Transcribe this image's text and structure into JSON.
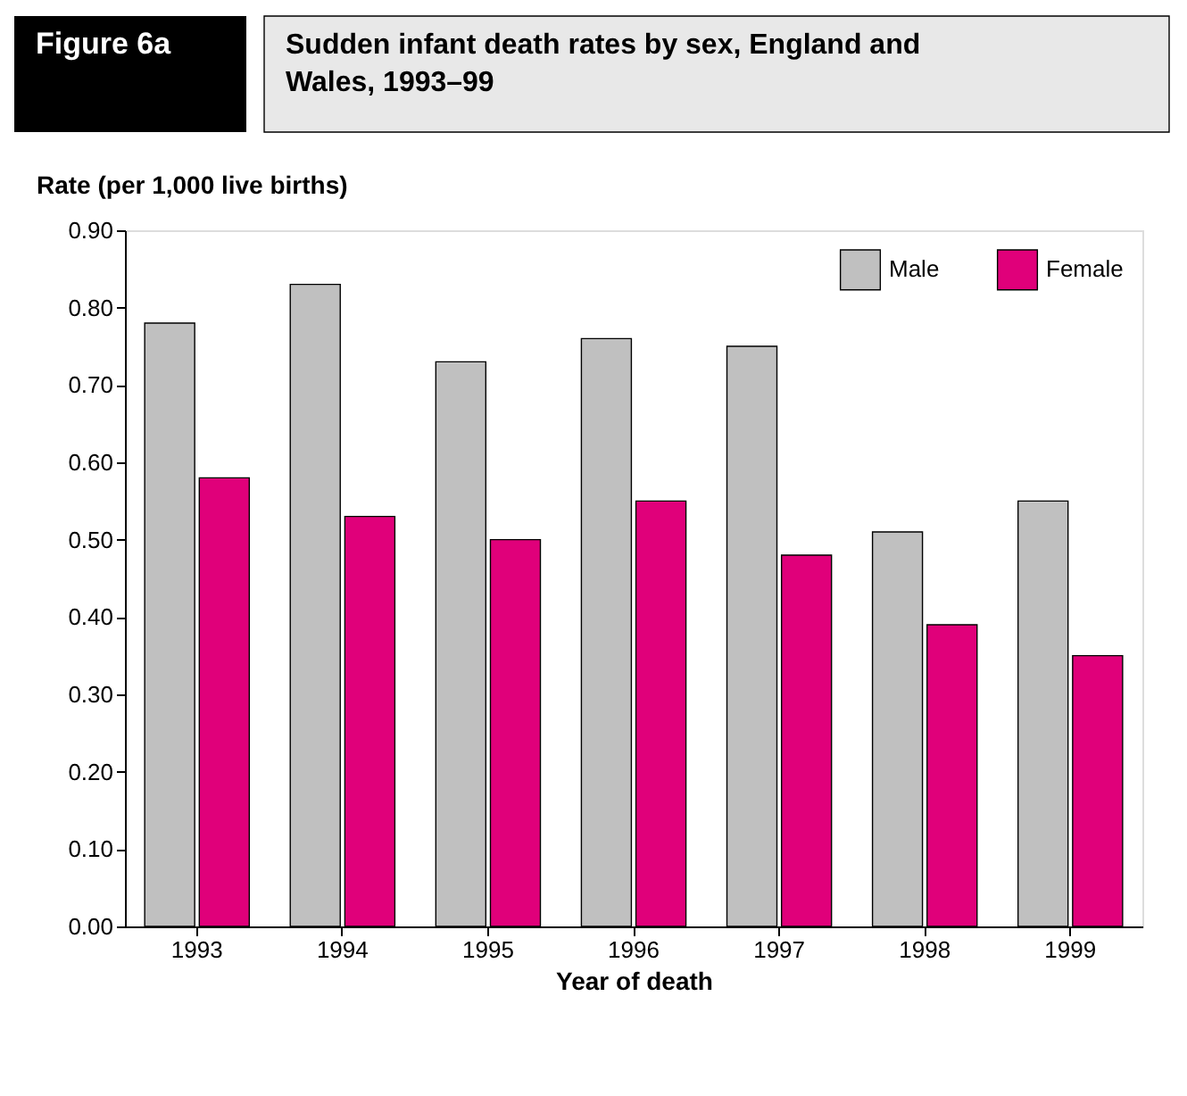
{
  "chart_data": {
    "type": "bar",
    "title": "Sudden infant death rates by sex, England and Wales, 1993–99",
    "annotations": [
      "Figure 6a"
    ],
    "xlabel": "Year of death",
    "ylabel": "Rate (per 1,000 live births)",
    "categories": [
      "1993",
      "1994",
      "1995",
      "1996",
      "1997",
      "1998",
      "1999"
    ],
    "series": [
      {
        "name": "Male",
        "color": "#c0c0c0",
        "values": [
          0.78,
          0.83,
          0.73,
          0.76,
          0.75,
          0.51,
          0.55
        ]
      },
      {
        "name": "Female",
        "color": "#e0007a",
        "values": [
          0.58,
          0.53,
          0.5,
          0.55,
          0.48,
          0.39,
          0.35
        ]
      }
    ],
    "ylim": [
      0,
      0.9
    ],
    "yticks": [
      {
        "value": 0,
        "label": "0.00"
      },
      {
        "value": 0.1,
        "label": "0.10"
      },
      {
        "value": 0.2,
        "label": "0.20"
      },
      {
        "value": 0.3,
        "label": "0.30"
      },
      {
        "value": 0.4,
        "label": "0.40"
      },
      {
        "value": 0.5,
        "label": "0.50"
      },
      {
        "value": 0.6,
        "label": "0.60"
      },
      {
        "value": 0.7,
        "label": "0.70"
      },
      {
        "value": 0.8,
        "label": "0.80"
      },
      {
        "value": 0.9,
        "label": "0.90"
      }
    ],
    "grid": false,
    "legend": "top right"
  }
}
